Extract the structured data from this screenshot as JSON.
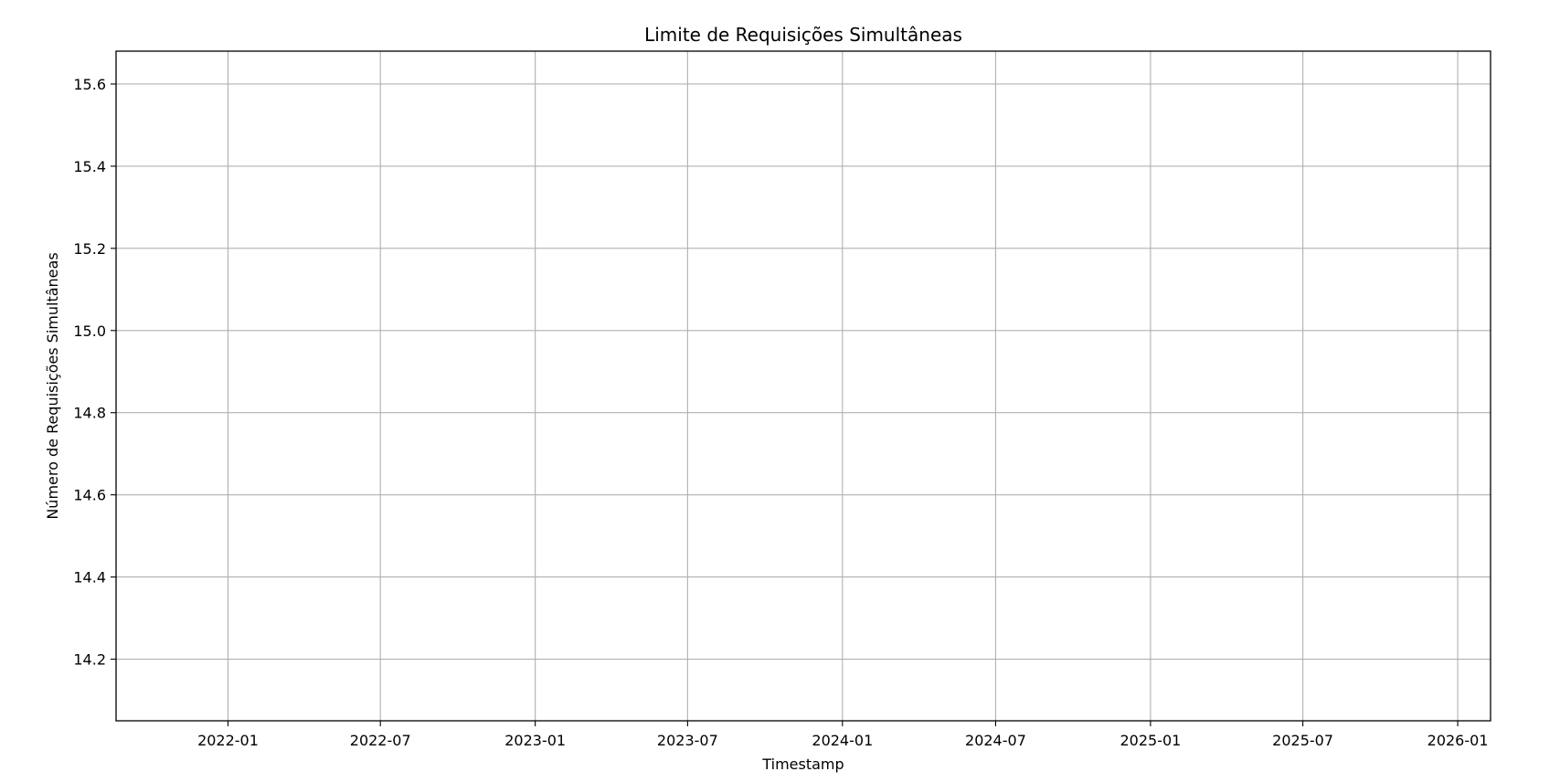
{
  "chart_data": {
    "type": "line",
    "title": "Limite de Requisições Simultâneas",
    "xlabel": "Timestamp",
    "ylabel": "Número de Requisições Simultâneas",
    "xlim": [
      "2021-08-21",
      "2026-02-09"
    ],
    "ylim": [
      14.05,
      15.68
    ],
    "x_ticks": [
      "2022-01",
      "2022-07",
      "2023-01",
      "2023-07",
      "2024-01",
      "2024-07",
      "2025-01",
      "2025-07",
      "2026-01"
    ],
    "x_tick_dates": [
      "2022-01-01",
      "2022-07-01",
      "2023-01-01",
      "2023-07-01",
      "2024-01-01",
      "2024-07-01",
      "2025-01-01",
      "2025-07-01",
      "2026-01-01"
    ],
    "y_ticks": [
      "14.2",
      "14.4",
      "14.6",
      "14.8",
      "15.0",
      "15.2",
      "15.4",
      "15.6"
    ],
    "y_tick_values": [
      14.2,
      14.4,
      14.6,
      14.8,
      15.0,
      15.2,
      15.4,
      15.6
    ],
    "grid": true,
    "series": [
      {
        "x": [],
        "values": [],
        "color": "#1f77b4"
      }
    ]
  }
}
